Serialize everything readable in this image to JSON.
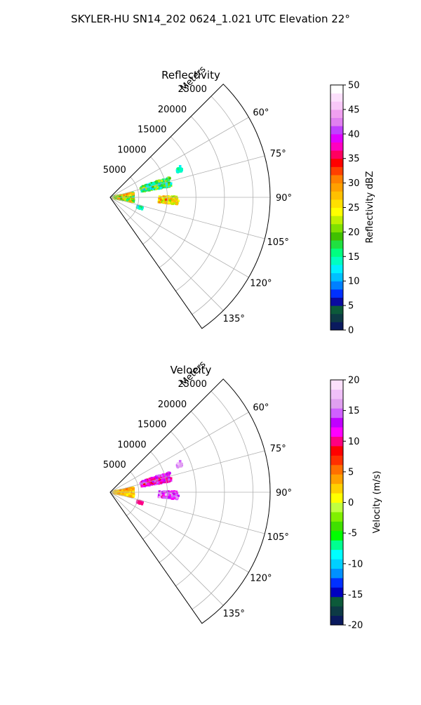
{
  "figure": {
    "title": "SKYLER-HU  SN14_202  0624_1.021 UTC Elevation 22°"
  },
  "chart_data": [
    {
      "type": "heatmap",
      "title": "Reflectivity",
      "range_label": "Meters",
      "range_ticks": [
        5000,
        10000,
        15000,
        20000,
        25000
      ],
      "range_lim": [
        0,
        28000
      ],
      "azimuth_ticks": [
        "60°",
        "75°",
        "90°",
        "105°",
        "120°",
        "135°"
      ],
      "azimuth_tick_values": [
        60,
        75,
        90,
        105,
        120,
        135
      ],
      "azimuth_lim": [
        45,
        145
      ],
      "grid": true,
      "colorbar": {
        "label": "Reflectivity dBZ",
        "ticks": [
          0,
          5,
          10,
          15,
          20,
          25,
          30,
          35,
          40,
          45,
          50
        ],
        "range": [
          0,
          50
        ],
        "colors": [
          "#0a1a5e",
          "#0d3a45",
          "#0c5a3a",
          "#0a0aa0",
          "#0030ff",
          "#0080ff",
          "#00c0ff",
          "#00f0ff",
          "#00ffc0",
          "#00ff80",
          "#20e040",
          "#40c000",
          "#80e000",
          "#c0f000",
          "#ffff00",
          "#ffe000",
          "#ffc000",
          "#ffa000",
          "#ff8000",
          "#ff4000",
          "#ff0000",
          "#ff0060",
          "#ff00c0",
          "#e000ff",
          "#c040ff",
          "#e080f0",
          "#f0a0f0",
          "#f8c8f8",
          "#fce0fc",
          "#ffffff"
        ]
      },
      "echo_regions": [
        {
          "r": [
            500,
            4200
          ],
          "az": [
            78,
            102
          ],
          "value": 24,
          "spread": 8
        },
        {
          "r": [
            5500,
            11000
          ],
          "az": [
            71,
            80
          ],
          "value": 17,
          "spread": 6
        },
        {
          "r": [
            8500,
            12000
          ],
          "az": [
            89,
            96
          ],
          "value": 26,
          "spread": 6
        },
        {
          "r": [
            5000,
            6000
          ],
          "az": [
            106,
            111
          ],
          "value": 14,
          "spread": 4
        },
        {
          "r": [
            12500,
            13500
          ],
          "az": [
            66,
            70
          ],
          "value": 14,
          "spread": 2
        }
      ]
    },
    {
      "type": "heatmap",
      "title": "Velocity",
      "range_label": "Meters",
      "range_ticks": [
        5000,
        10000,
        15000,
        20000,
        25000
      ],
      "range_lim": [
        0,
        28000
      ],
      "azimuth_ticks": [
        "60°",
        "75°",
        "90°",
        "105°",
        "120°",
        "135°"
      ],
      "azimuth_tick_values": [
        60,
        75,
        90,
        105,
        120,
        135
      ],
      "azimuth_lim": [
        45,
        145
      ],
      "grid": true,
      "colorbar": {
        "label": "Velocity (m/s)",
        "ticks": [
          -20,
          -15,
          -10,
          -5,
          0,
          5,
          10,
          15,
          20
        ],
        "range": [
          -20,
          20
        ],
        "colors": [
          "#0a1a5e",
          "#0d3a45",
          "#0c5a3a",
          "#0000c0",
          "#0030ff",
          "#0090ff",
          "#00d0ff",
          "#00ffff",
          "#00ff90",
          "#00ff00",
          "#40e000",
          "#80f000",
          "#c0ff40",
          "#ffff00",
          "#ffd000",
          "#ffa000",
          "#ff7000",
          "#ff3000",
          "#ff0000",
          "#ff0080",
          "#ff00ff",
          "#c000ff",
          "#d060ff",
          "#e0a0f0",
          "#f0c0f8",
          "#fce0fc"
        ]
      },
      "echo_regions": [
        {
          "r": [
            500,
            4200
          ],
          "az": [
            78,
            102
          ],
          "value": 3,
          "spread": 2
        },
        {
          "r": [
            5500,
            11000
          ],
          "az": [
            71,
            80
          ],
          "value": 12,
          "spread": 3
        },
        {
          "r": [
            8500,
            12000
          ],
          "az": [
            89,
            96
          ],
          "value": 14,
          "spread": 4
        },
        {
          "r": [
            5000,
            6000
          ],
          "az": [
            106,
            111
          ],
          "value": 10,
          "spread": 1
        },
        {
          "r": [
            12500,
            13500
          ],
          "az": [
            66,
            70
          ],
          "value": 16,
          "spread": 2
        }
      ]
    }
  ]
}
